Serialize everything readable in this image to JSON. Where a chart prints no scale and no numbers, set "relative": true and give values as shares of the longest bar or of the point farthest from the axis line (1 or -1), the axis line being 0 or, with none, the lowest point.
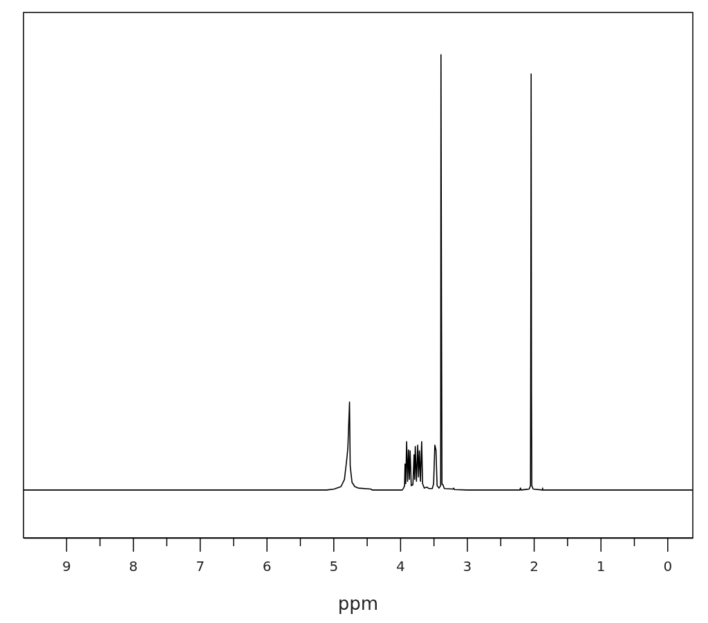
{
  "chart_data": {
    "type": "line",
    "xlabel": "ppm",
    "color": "#000000",
    "relative": true,
    "x": [
      9.64,
      5.1,
      4.99,
      4.887,
      4.835,
      4.8,
      4.784,
      4.759,
      4.749,
      4.722,
      4.68,
      4.628,
      4.44,
      4.42,
      3.97,
      3.95,
      3.935,
      3.928,
      3.918,
      3.904,
      3.89,
      3.876,
      3.864,
      3.852,
      3.835,
      3.81,
      3.793,
      3.784,
      3.775,
      3.757,
      3.738,
      3.726,
      3.713,
      3.697,
      3.679,
      3.665,
      3.64,
      3.6,
      3.57,
      3.52,
      3.5,
      3.482,
      3.465,
      3.448,
      3.42,
      3.395,
      3.39,
      3.382,
      3.375,
      3.36,
      3.34,
      3.21,
      3.2,
      3.19,
      3.0,
      2.21,
      2.2,
      2.19,
      2.07,
      2.05,
      2.045,
      2.04,
      2.035,
      2.03,
      2.01,
      1.87,
      1.868,
      1.866,
      -0.38
    ],
    "values": [
      0.099,
      0.099,
      0.101,
      0.106,
      0.121,
      0.163,
      0.186,
      0.281,
      0.149,
      0.115,
      0.106,
      0.103,
      0.101,
      0.099,
      0.099,
      0.103,
      0.108,
      0.153,
      0.112,
      0.199,
      0.117,
      0.182,
      0.121,
      0.18,
      0.108,
      0.11,
      0.172,
      0.121,
      0.189,
      0.117,
      0.192,
      0.126,
      0.18,
      0.117,
      0.199,
      0.112,
      0.103,
      0.105,
      0.102,
      0.102,
      0.112,
      0.192,
      0.182,
      0.108,
      0.103,
      0.108,
      1,
      0.464,
      0.111,
      0.11,
      0.102,
      0.101,
      0.103,
      0.1,
      0.099,
      0.099,
      0.103,
      0.099,
      0.101,
      0.108,
      0.469,
      0.96,
      0.304,
      0.108,
      0.101,
      0.099,
      0.103,
      0.099,
      0.099
    ],
    "xlim": [
      9.64,
      -0.38
    ],
    "xticks": [
      9,
      {
        "value": 8.5,
        "label": null
      },
      8,
      {
        "value": 7.5,
        "label": null
      },
      7,
      {
        "value": 6.5,
        "label": null
      },
      6,
      {
        "value": 5.5,
        "label": null
      },
      5,
      {
        "value": 4.5,
        "label": null
      },
      4,
      {
        "value": 3.5,
        "label": null
      },
      3,
      {
        "value": 2.5,
        "label": null
      },
      2,
      {
        "value": 1.5,
        "label": null
      },
      1,
      {
        "value": 0.5,
        "label": null
      },
      0
    ]
  }
}
